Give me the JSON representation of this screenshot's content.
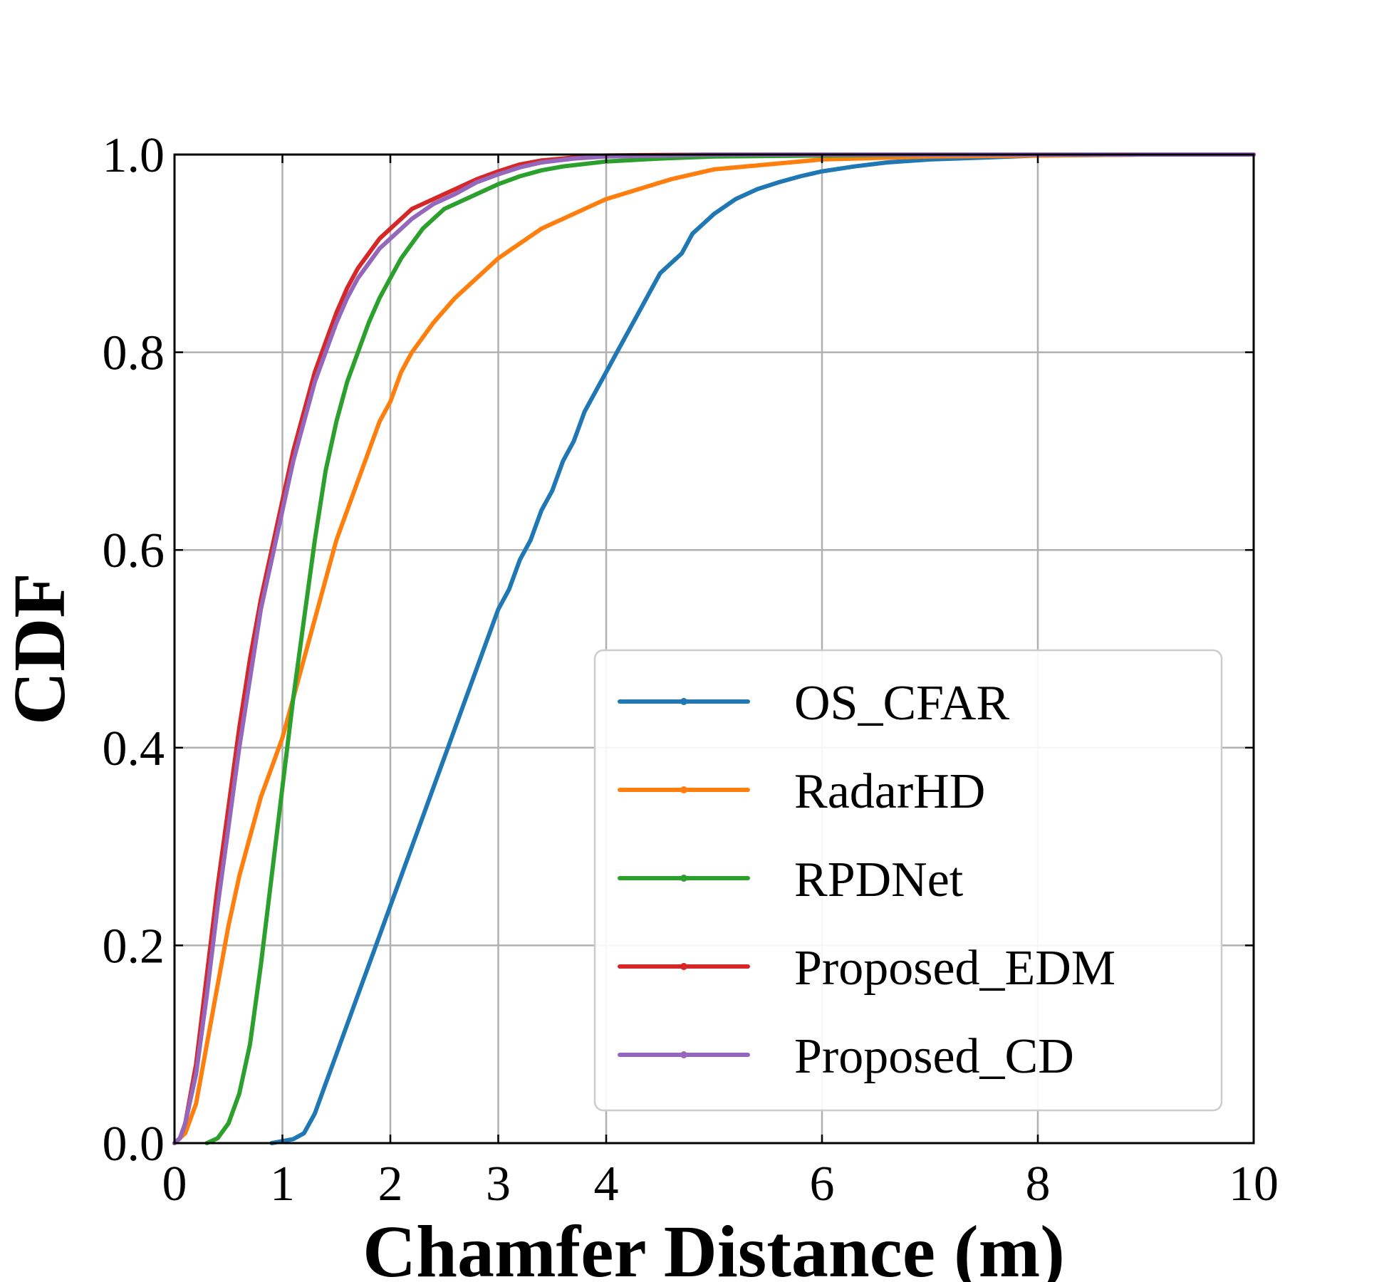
{
  "chart_data": {
    "type": "line",
    "title": "",
    "xlabel": "Chamfer Distance (m)",
    "ylabel": "CDF",
    "xlim": [
      0,
      10
    ],
    "ylim": [
      0,
      1.0
    ],
    "grid": true,
    "legend_position": "bottom-right",
    "x_ticks": [
      0,
      1,
      2,
      3,
      4,
      6,
      8,
      10
    ],
    "x_tick_labels": [
      "0",
      "1",
      "2",
      "3",
      "4",
      "6",
      "8",
      "10"
    ],
    "y_ticks": [
      0.0,
      0.2,
      0.4,
      0.6,
      0.8,
      1.0
    ],
    "y_tick_labels": [
      "0.0",
      "0.2",
      "0.4",
      "0.6",
      "0.8",
      "1.0"
    ],
    "series": [
      {
        "name": "OS_CFAR",
        "color": "#1f77b4",
        "x": [
          0.9,
          1.0,
          1.1,
          1.2,
          1.3,
          1.4,
          1.5,
          1.6,
          1.7,
          1.8,
          1.9,
          2.0,
          2.1,
          2.2,
          2.3,
          2.4,
          2.5,
          2.6,
          2.7,
          2.8,
          2.9,
          3.0,
          3.1,
          3.2,
          3.3,
          3.4,
          3.5,
          3.6,
          3.7,
          3.8,
          3.9,
          4.0,
          4.1,
          4.2,
          4.3,
          4.4,
          4.5,
          4.6,
          4.7,
          4.8,
          4.9,
          5.0,
          5.2,
          5.4,
          5.6,
          5.8,
          6.0,
          6.3,
          6.6,
          7.0,
          7.5,
          8.0,
          9.0,
          10.0
        ],
        "values": [
          0.0,
          0.002,
          0.004,
          0.01,
          0.03,
          0.06,
          0.09,
          0.12,
          0.15,
          0.18,
          0.21,
          0.24,
          0.27,
          0.3,
          0.33,
          0.36,
          0.39,
          0.42,
          0.45,
          0.48,
          0.51,
          0.54,
          0.56,
          0.59,
          0.61,
          0.64,
          0.66,
          0.69,
          0.71,
          0.74,
          0.76,
          0.78,
          0.8,
          0.82,
          0.84,
          0.86,
          0.88,
          0.89,
          0.9,
          0.92,
          0.93,
          0.94,
          0.955,
          0.965,
          0.972,
          0.978,
          0.983,
          0.988,
          0.992,
          0.995,
          0.997,
          0.999,
          1.0,
          1.0
        ]
      },
      {
        "name": "RadarHD",
        "color": "#ff7f0e",
        "x": [
          0.0,
          0.1,
          0.2,
          0.3,
          0.4,
          0.5,
          0.6,
          0.7,
          0.8,
          0.9,
          1.0,
          1.1,
          1.2,
          1.3,
          1.4,
          1.5,
          1.6,
          1.7,
          1.8,
          1.9,
          2.0,
          2.1,
          2.2,
          2.4,
          2.6,
          2.8,
          3.0,
          3.2,
          3.4,
          3.6,
          3.8,
          4.0,
          4.3,
          4.6,
          5.0,
          5.5,
          6.0,
          7.0,
          8.0,
          9.0,
          10.0
        ],
        "values": [
          0.0,
          0.01,
          0.04,
          0.1,
          0.16,
          0.22,
          0.27,
          0.31,
          0.35,
          0.38,
          0.41,
          0.45,
          0.49,
          0.53,
          0.57,
          0.61,
          0.64,
          0.67,
          0.7,
          0.73,
          0.75,
          0.78,
          0.8,
          0.83,
          0.855,
          0.875,
          0.895,
          0.91,
          0.925,
          0.935,
          0.945,
          0.955,
          0.965,
          0.975,
          0.985,
          0.99,
          0.995,
          0.998,
          0.999,
          1.0,
          1.0
        ]
      },
      {
        "name": "RPDNet",
        "color": "#2ca02c",
        "x": [
          0.3,
          0.4,
          0.5,
          0.6,
          0.7,
          0.8,
          0.9,
          1.0,
          1.1,
          1.2,
          1.3,
          1.4,
          1.5,
          1.6,
          1.7,
          1.8,
          1.9,
          2.0,
          2.1,
          2.2,
          2.3,
          2.4,
          2.5,
          2.6,
          2.8,
          3.0,
          3.2,
          3.4,
          3.6,
          4.0,
          4.5,
          5.0,
          6.0,
          7.0,
          8.0,
          10.0
        ],
        "values": [
          0.0,
          0.005,
          0.02,
          0.05,
          0.1,
          0.18,
          0.27,
          0.36,
          0.45,
          0.53,
          0.61,
          0.68,
          0.73,
          0.77,
          0.8,
          0.83,
          0.855,
          0.875,
          0.895,
          0.91,
          0.925,
          0.935,
          0.945,
          0.95,
          0.96,
          0.97,
          0.978,
          0.984,
          0.988,
          0.993,
          0.996,
          0.998,
          0.999,
          1.0,
          1.0,
          1.0
        ]
      },
      {
        "name": "Proposed_EDM",
        "color": "#d62728",
        "x": [
          0.0,
          0.05,
          0.1,
          0.2,
          0.3,
          0.4,
          0.5,
          0.6,
          0.7,
          0.8,
          0.9,
          1.0,
          1.1,
          1.2,
          1.3,
          1.4,
          1.5,
          1.6,
          1.7,
          1.8,
          1.9,
          2.0,
          2.1,
          2.2,
          2.4,
          2.6,
          2.8,
          3.0,
          3.2,
          3.4,
          3.7,
          4.0,
          5.0,
          6.0,
          8.0,
          10.0
        ],
        "values": [
          0.0,
          0.005,
          0.02,
          0.08,
          0.17,
          0.26,
          0.34,
          0.42,
          0.49,
          0.55,
          0.6,
          0.65,
          0.7,
          0.74,
          0.78,
          0.81,
          0.84,
          0.865,
          0.885,
          0.9,
          0.915,
          0.925,
          0.935,
          0.945,
          0.955,
          0.965,
          0.975,
          0.983,
          0.99,
          0.994,
          0.997,
          0.999,
          1.0,
          1.0,
          1.0,
          1.0
        ]
      },
      {
        "name": "Proposed_CD",
        "color": "#9467bd",
        "x": [
          0.0,
          0.05,
          0.1,
          0.2,
          0.3,
          0.4,
          0.5,
          0.6,
          0.7,
          0.8,
          0.9,
          1.0,
          1.1,
          1.2,
          1.3,
          1.4,
          1.5,
          1.6,
          1.7,
          1.8,
          1.9,
          2.0,
          2.1,
          2.2,
          2.4,
          2.6,
          2.8,
          3.0,
          3.2,
          3.4,
          3.7,
          4.0,
          5.0,
          6.0,
          8.0,
          10.0
        ],
        "values": [
          0.0,
          0.005,
          0.02,
          0.07,
          0.15,
          0.24,
          0.32,
          0.4,
          0.47,
          0.54,
          0.59,
          0.64,
          0.69,
          0.73,
          0.77,
          0.8,
          0.83,
          0.855,
          0.875,
          0.89,
          0.905,
          0.915,
          0.925,
          0.935,
          0.95,
          0.96,
          0.972,
          0.98,
          0.987,
          0.992,
          0.996,
          0.998,
          1.0,
          1.0,
          1.0,
          1.0
        ]
      }
    ]
  }
}
